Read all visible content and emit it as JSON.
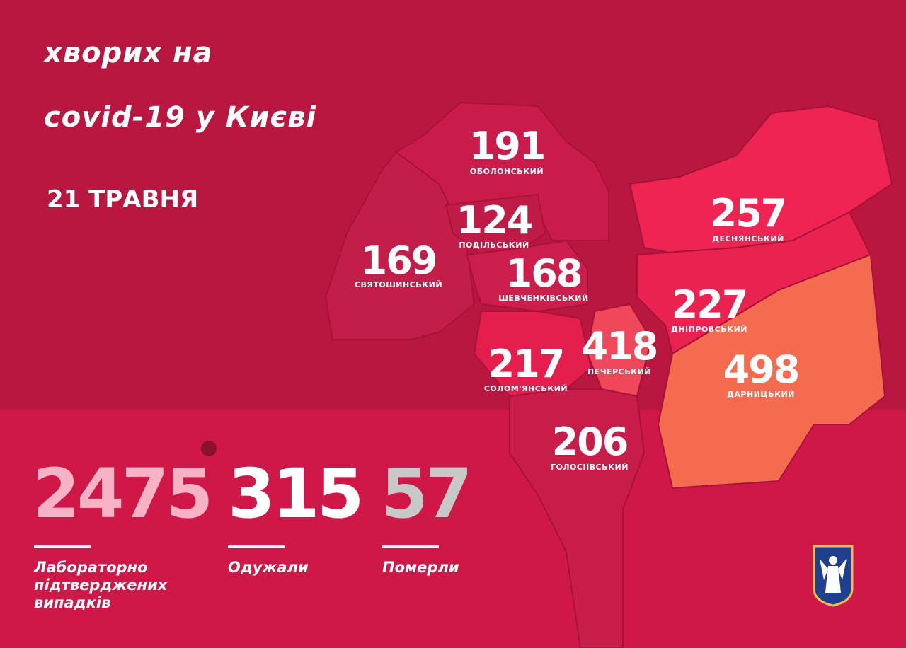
{
  "header": {
    "title_line1": "хворих на",
    "title_line2": "covid-19 у Києві",
    "date": "21 ТРАВНЯ"
  },
  "colors": {
    "background": "#b8173f",
    "band": "#cf1848",
    "low": "#c41d4a",
    "mid": "#e41f4d",
    "high": "#ee2452",
    "peak": "#f56b4f",
    "confirmed": "#f7b3c6",
    "recovered": "#ffffff",
    "deaths": "#c8c8c8"
  },
  "districts": [
    {
      "name": "ОБОЛОНСЬКИЙ",
      "cases": "191"
    },
    {
      "name": "ПОДІЛЬСЬКИЙ",
      "cases": "124"
    },
    {
      "name": "СВЯТОШИНСЬКИЙ",
      "cases": "169"
    },
    {
      "name": "ШЕВЧЕНКІВСЬКИЙ",
      "cases": "168"
    },
    {
      "name": "ДЕСНЯНСЬКИЙ",
      "cases": "257"
    },
    {
      "name": "ДНІПРОВСЬКИЙ",
      "cases": "227"
    },
    {
      "name": "СОЛОМ'ЯНСЬКИЙ",
      "cases": "217"
    },
    {
      "name": "ПЕЧЕРСЬКИЙ",
      "cases": "418"
    },
    {
      "name": "ДАРНИЦЬКИЙ",
      "cases": "498"
    },
    {
      "name": "ГОЛОСІЇВСЬКИЙ",
      "cases": "206"
    }
  ],
  "stats": {
    "confirmed": {
      "value": "2475",
      "label": "Лабораторно підтверджених випадків"
    },
    "recovered": {
      "value": "315",
      "label": "Одужали"
    },
    "deaths": {
      "value": "57",
      "label": "Померли"
    }
  },
  "icons": {
    "virus": "virus-icon",
    "logo": "kyiv-coat-of-arms"
  }
}
